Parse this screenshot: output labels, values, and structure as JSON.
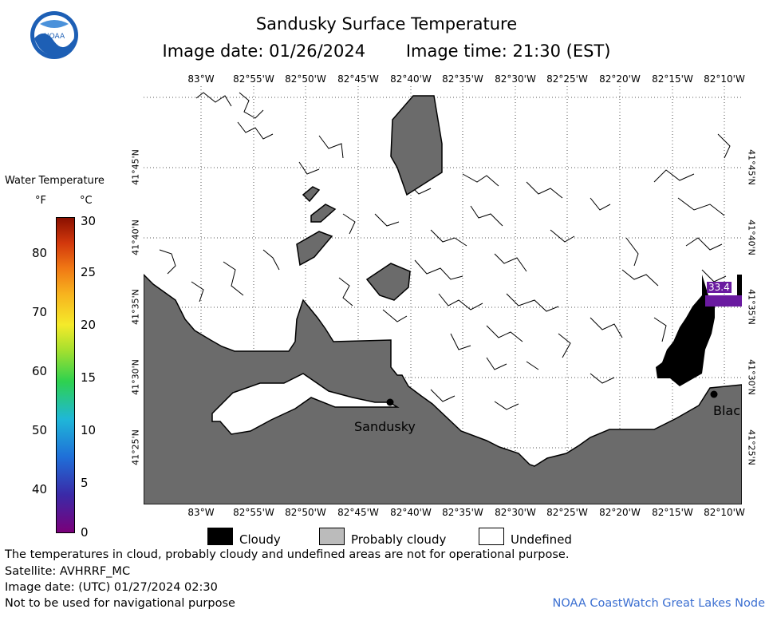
{
  "header": {
    "title": "Sandusky Surface Temperature",
    "image_date": "Image date: 01/26/2024",
    "image_time": "Image time: 21:30 (EST)"
  },
  "logo": {
    "text": "NOAA",
    "icon": "noaa-logo"
  },
  "color_legend": {
    "title": "Water Temperature",
    "unit_f": "°F",
    "unit_c": "°C",
    "f_ticks": [
      "80",
      "70",
      "60",
      "50",
      "40"
    ],
    "c_ticks": [
      "30",
      "25",
      "20",
      "15",
      "10",
      "5",
      "0"
    ]
  },
  "map": {
    "lon_labels": [
      "83°W",
      "82°55'W",
      "82°50'W",
      "82°45'W",
      "82°40'W",
      "82°35'W",
      "82°30'W",
      "82°25'W",
      "82°20'W",
      "82°15'W",
      "82°10'W"
    ],
    "lat_labels": [
      "41°45'N",
      "41°40'N",
      "41°35'N",
      "41°30'N",
      "41°25'N"
    ],
    "places": {
      "sandusky": "Sandusky",
      "black": "Blac"
    },
    "temp_label": "33.4"
  },
  "category_legend": {
    "cloudy": "Cloudy",
    "probably_cloudy": "Probably cloudy",
    "undefined": "Undefined",
    "colors": {
      "cloudy": "#000000",
      "probably_cloudy": "#bbbbbb",
      "undefined": "#ffffff",
      "land": "#6b6b6b"
    }
  },
  "footer": {
    "disclaimer": "The temperatures in cloud, probably cloudy and undefined areas are not for operational purpose.",
    "satellite": "Satellite: AVHRRF_MC",
    "utc_date": "Image date: (UTC) 01/27/2024  02:30",
    "nav_warning": "Not to be used for navigational purpose",
    "credit": "NOAA CoastWatch Great Lakes Node"
  }
}
